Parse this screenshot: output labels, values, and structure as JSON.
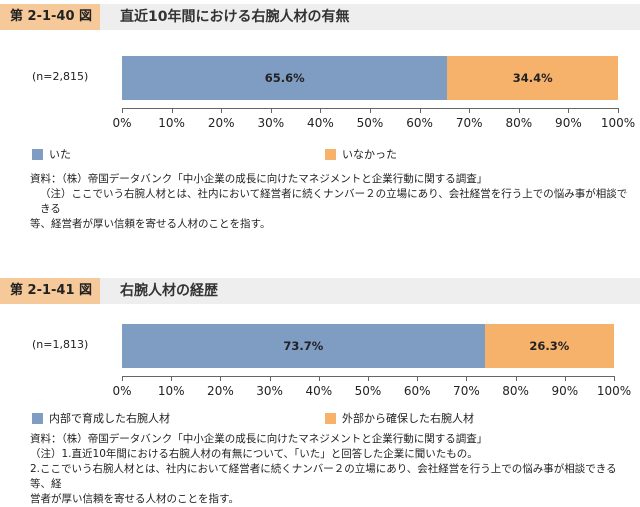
{
  "colors": {
    "blue": "#7f9cc3",
    "orange": "#f6b26b",
    "title_band": "#f6c99a",
    "title_bg": "#eeeeee"
  },
  "figures": [
    {
      "label": "第 2-1-40 図",
      "title": "直近10年間における右腕人材の有無",
      "notes": [
        "資料：（株）帝国データバンク「中小企業の成長に向けたマネジメントと企業行動に関する調査」",
        "（注）ここでいう右腕人材とは、社内において経営者に続くナンバー２の立場にあり、会社経営を行う上での悩み事が相談できる",
        "等、経営者が厚い信頼を寄せる人材のことを指す。"
      ]
    },
    {
      "label": "第 2-1-41 図",
      "title": "右腕人材の経歴",
      "notes": [
        "資料：（株）帝国データバンク「中小企業の成長に向けたマネジメントと企業行動に関する調査」",
        "（注）1.直近10年間における右腕人材の有無について、「いた」と回答した企業に聞いたもの。",
        "2.ここでいう右腕人材とは、社内において経営者に続くナンバー２の立場にあり、会社経営を行う上での悩み事が相談できる等、経",
        "営者が厚い信頼を寄せる人材のことを指す。"
      ]
    }
  ],
  "chart_data": [
    {
      "type": "bar",
      "orientation": "horizontal-stacked",
      "categories": [
        "(n=2,815)"
      ],
      "series": [
        {
          "name": "いた",
          "values": [
            65.6
          ],
          "label": "65.6%",
          "color": "#7f9cc3"
        },
        {
          "name": "いなかった",
          "values": [
            34.4
          ],
          "label": "34.4%",
          "color": "#f6b26b"
        }
      ],
      "xlim": [
        0,
        100
      ],
      "xticks": [
        "0%",
        "10%",
        "20%",
        "30%",
        "40%",
        "50%",
        "60%",
        "70%",
        "80%",
        "90%",
        "100%"
      ]
    },
    {
      "type": "bar",
      "orientation": "horizontal-stacked",
      "categories": [
        "(n=1,813)"
      ],
      "series": [
        {
          "name": "内部で育成した右腕人材",
          "values": [
            73.7
          ],
          "label": "73.7%",
          "color": "#7f9cc3"
        },
        {
          "name": "外部から確保した右腕人材",
          "values": [
            26.3
          ],
          "label": "26.3%",
          "color": "#f6b26b"
        }
      ],
      "xlim": [
        0,
        100
      ],
      "xticks": [
        "0%",
        "10%",
        "20%",
        "30%",
        "40%",
        "50%",
        "60%",
        "70%",
        "80%",
        "90%",
        "100%"
      ]
    }
  ]
}
